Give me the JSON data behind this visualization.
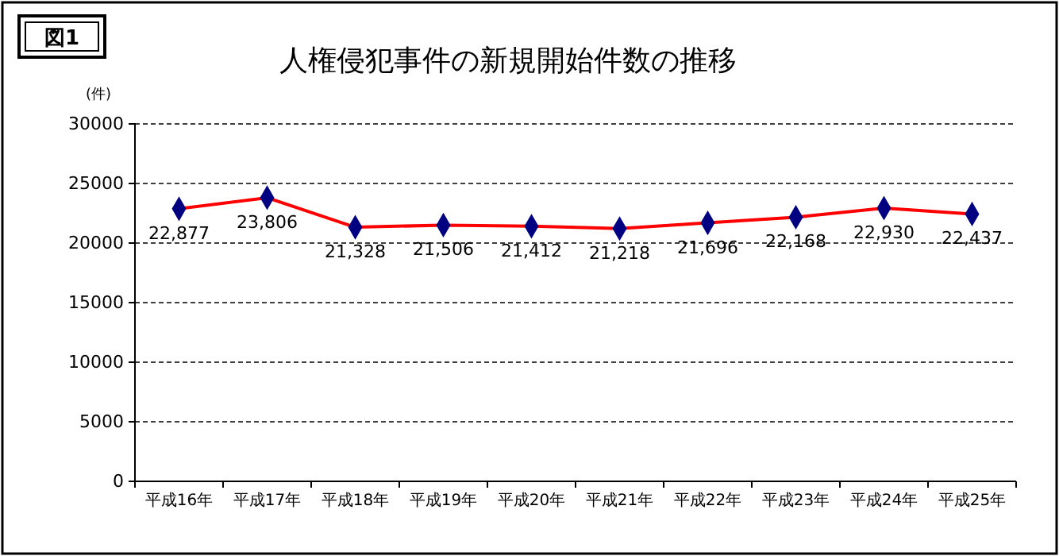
{
  "chart_data": {
    "type": "line",
    "title": "人権侵犯事件の新規開始件数の推移",
    "ylabel": "(件)",
    "annotations": [
      "図1"
    ],
    "categories": [
      "平成16年",
      "平成17年",
      "平成18年",
      "平成19年",
      "平成20年",
      "平成21年",
      "平成22年",
      "平成23年",
      "平成24年",
      "平成25年"
    ],
    "series": [
      {
        "color": "#ff0000",
        "values": [
          22877,
          23806,
          21328,
          21506,
          21412,
          21218,
          21696,
          22168,
          22930,
          22437
        ],
        "value_labels": [
          "22,877",
          "23,806",
          "21,328",
          "21,506",
          "21,412",
          "21,218",
          "21,696",
          "22,168",
          "22,930",
          "22,437"
        ]
      }
    ],
    "marker": "diamond",
    "line_style": "solid",
    "ylim": [
      0,
      30000
    ],
    "yticks": [
      0,
      5000,
      10000,
      15000,
      20000,
      25000,
      30000
    ],
    "grid": "y"
  }
}
